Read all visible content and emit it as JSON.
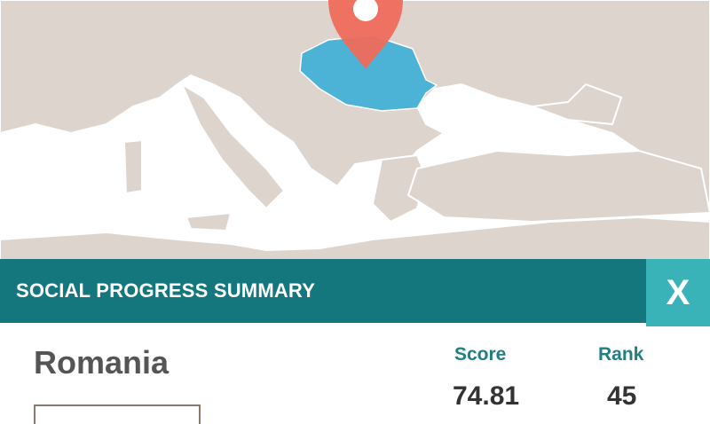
{
  "colors": {
    "teal": "#13777d",
    "teal_light": "#3ab3b8",
    "highlight": "#4db3d6",
    "pin": "#ee6b5b",
    "land": "#ddd4cd"
  },
  "map": {
    "selected_country": "Romania",
    "pin_icon": "map-pin-icon"
  },
  "panel": {
    "title": "SOCIAL PROGRESS SUMMARY",
    "close_label": "X",
    "country": "Romania",
    "score_label": "Score",
    "score_value": "74.81",
    "rank_label": "Rank",
    "rank_value": "45"
  }
}
